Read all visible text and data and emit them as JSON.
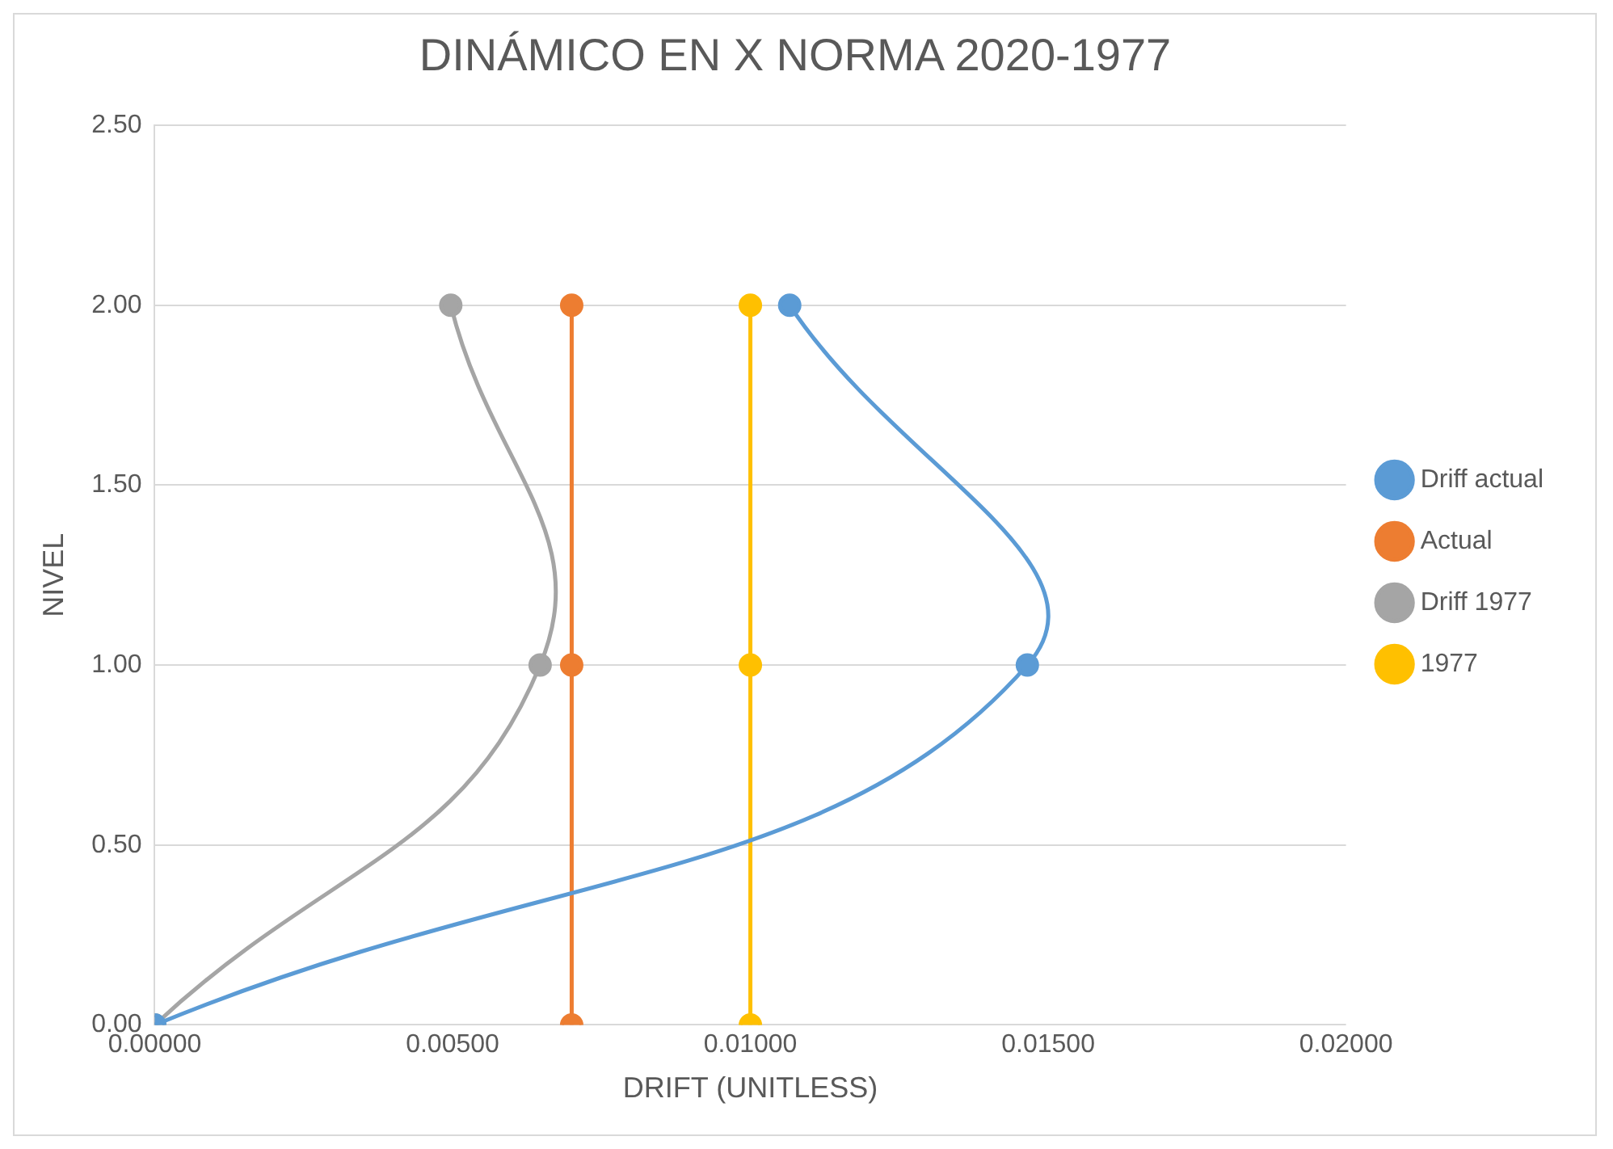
{
  "chart_data": {
    "type": "line",
    "title": "DINÁMICO EN X NORMA 2020-1977",
    "xlabel": "DRIFT (UNITLESS)",
    "ylabel": "NIVEL",
    "series": [
      {
        "name": "Driff actual",
        "color": "#5b9bd5",
        "x": [
          0,
          0.01465,
          0.01066
        ],
        "values": [
          0,
          1,
          2
        ]
      },
      {
        "name": "Actual",
        "color": "#ed7d31",
        "x": [
          0.007,
          0.007,
          0.007
        ],
        "values": [
          0,
          1,
          2
        ]
      },
      {
        "name": "Driff 1977",
        "color": "#a5a5a5",
        "x": [
          0,
          0.00647,
          0.00497
        ],
        "values": [
          0,
          1,
          2
        ]
      },
      {
        "name": "1977",
        "color": "#ffc000",
        "x": [
          0.01,
          0.01,
          0.01
        ],
        "values": [
          0,
          1,
          2
        ]
      }
    ],
    "xlim": [
      0,
      0.02
    ],
    "xticks": [
      {
        "value": 0,
        "label": "0.00000"
      },
      {
        "value": 0.005,
        "label": "0.00500"
      },
      {
        "value": 0.01,
        "label": "0.01000"
      },
      {
        "value": 0.015,
        "label": "0.01500"
      },
      {
        "value": 0.02,
        "label": "0.02000"
      }
    ],
    "ylim": [
      0,
      2.5
    ],
    "yticks": [
      {
        "value": 0,
        "label": "0.00"
      },
      {
        "value": 0.5,
        "label": "0.50"
      },
      {
        "value": 1,
        "label": "1.00"
      },
      {
        "value": 1.5,
        "label": "1.50"
      },
      {
        "value": 2,
        "label": "2.00"
      },
      {
        "value": 2.5,
        "label": "2.50"
      }
    ],
    "grid": "y",
    "legend": "right",
    "marker": "circle",
    "line_style": "solid"
  }
}
